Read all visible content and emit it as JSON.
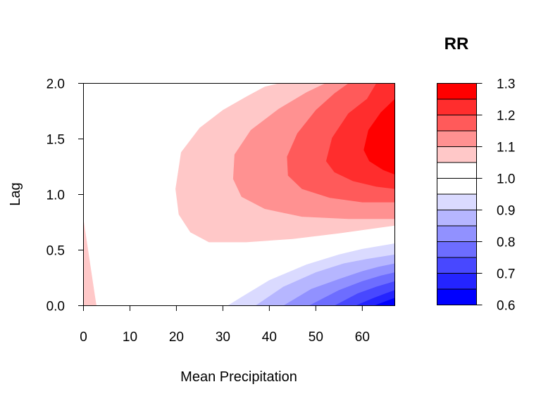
{
  "chart_data": {
    "type": "heatmap",
    "subtype": "filled-contour",
    "xlabel": "Mean Precipitation",
    "ylabel": "Lag",
    "xlim": [
      0,
      67
    ],
    "ylim": [
      0,
      2
    ],
    "xticks": [
      "0",
      "10",
      "20",
      "30",
      "40",
      "50",
      "60"
    ],
    "yticks": [
      "0.0",
      "0.5",
      "1.0",
      "1.5",
      "2.0"
    ],
    "legend": {
      "title": "RR",
      "placement": "right",
      "ticks": [
        "0.6",
        "0.7",
        "0.8",
        "0.9",
        "1.0",
        "1.1",
        "1.2",
        "1.3"
      ],
      "levels": [
        0.6,
        0.65,
        0.7,
        0.75,
        0.8,
        0.85,
        0.9,
        0.95,
        1.0,
        1.05,
        1.1,
        1.15,
        1.2,
        1.25,
        1.3
      ],
      "colors": [
        "#0000FF",
        "#2424FF",
        "#4848FF",
        "#6D6DFF",
        "#9191FF",
        "#B6B6FF",
        "#DADAFF",
        "#FFFFFF",
        "#FFFFFF",
        "#FFC8C8",
        "#FF9191",
        "#FF5A5A",
        "#FF2D2D",
        "#FF0000"
      ]
    },
    "regions": [
      {
        "rr_range": [
          1.05,
          1.1
        ],
        "color": "#FFC8C8",
        "points": [
          [
            0,
            0
          ],
          [
            0,
            0.78
          ],
          [
            1,
            0.5
          ],
          [
            2.5,
            0.08
          ],
          [
            2.8,
            0
          ]
        ]
      },
      {
        "rr_range": [
          1.05,
          1.1
        ],
        "color": "#FFC8C8",
        "points": [
          [
            42,
            2.0
          ],
          [
            39,
            1.97
          ],
          [
            35,
            1.88
          ],
          [
            30,
            1.76
          ],
          [
            25,
            1.6
          ],
          [
            21,
            1.38
          ],
          [
            19.8,
            1.05
          ],
          [
            20.5,
            0.82
          ],
          [
            23,
            0.66
          ],
          [
            27,
            0.57
          ],
          [
            35,
            0.57
          ],
          [
            45,
            0.6
          ],
          [
            55,
            0.65
          ],
          [
            67,
            0.72
          ],
          [
            67,
            2.0
          ]
        ]
      },
      {
        "rr_range": [
          1.1,
          1.15
        ],
        "color": "#FF9191",
        "points": [
          [
            52,
            2.0
          ],
          [
            48,
            1.92
          ],
          [
            42,
            1.77
          ],
          [
            36,
            1.58
          ],
          [
            32.5,
            1.36
          ],
          [
            32.2,
            1.14
          ],
          [
            34,
            0.98
          ],
          [
            39,
            0.87
          ],
          [
            47,
            0.8
          ],
          [
            57,
            0.78
          ],
          [
            67,
            0.78
          ],
          [
            67,
            2.0
          ]
        ]
      },
      {
        "rr_range": [
          1.15,
          1.2
        ],
        "color": "#FF5A5A",
        "points": [
          [
            57,
            2.0
          ],
          [
            54,
            1.91
          ],
          [
            50,
            1.76
          ],
          [
            46,
            1.55
          ],
          [
            43.8,
            1.34
          ],
          [
            44,
            1.17
          ],
          [
            47,
            1.05
          ],
          [
            53,
            0.97
          ],
          [
            60,
            0.93
          ],
          [
            67,
            0.93
          ],
          [
            67,
            2.0
          ]
        ]
      },
      {
        "rr_range": [
          1.2,
          1.25
        ],
        "color": "#FF2D2D",
        "points": [
          [
            63,
            2.0
          ],
          [
            61,
            1.86
          ],
          [
            57,
            1.73
          ],
          [
            53.5,
            1.51
          ],
          [
            52.2,
            1.3
          ],
          [
            54,
            1.2
          ],
          [
            58,
            1.12
          ],
          [
            63,
            1.07
          ],
          [
            67,
            1.05
          ],
          [
            67,
            2.0
          ]
        ]
      },
      {
        "rr_range": [
          1.25,
          1.3
        ],
        "color": "#FF0000",
        "points": [
          [
            67,
            1.86
          ],
          [
            64,
            1.74
          ],
          [
            61.3,
            1.58
          ],
          [
            60.3,
            1.4
          ],
          [
            61.5,
            1.3
          ],
          [
            64.5,
            1.22
          ],
          [
            67,
            1.18
          ]
        ]
      },
      {
        "rr_range": [
          0.9,
          0.95
        ],
        "color": "#DADAFF",
        "points": [
          [
            31,
            0
          ],
          [
            34.5,
            0.09
          ],
          [
            40,
            0.23
          ],
          [
            48,
            0.37
          ],
          [
            55,
            0.46
          ],
          [
            60,
            0.51
          ],
          [
            67,
            0.56
          ],
          [
            67,
            0
          ]
        ]
      },
      {
        "rr_range": [
          0.85,
          0.9
        ],
        "color": "#B6B6FF",
        "points": [
          [
            37,
            0
          ],
          [
            43,
            0.17
          ],
          [
            50,
            0.3
          ],
          [
            56,
            0.38
          ],
          [
            61,
            0.42
          ],
          [
            67,
            0.46
          ],
          [
            67,
            0
          ]
        ]
      },
      {
        "rr_range": [
          0.8,
          0.85
        ],
        "color": "#9191FF",
        "points": [
          [
            43,
            0
          ],
          [
            49,
            0.15
          ],
          [
            55,
            0.24
          ],
          [
            60,
            0.31
          ],
          [
            63.5,
            0.35
          ],
          [
            67,
            0.38
          ],
          [
            67,
            0
          ]
        ]
      },
      {
        "rr_range": [
          0.75,
          0.8
        ],
        "color": "#6D6DFF",
        "points": [
          [
            48.5,
            0
          ],
          [
            55,
            0.14
          ],
          [
            60,
            0.22
          ],
          [
            64,
            0.27
          ],
          [
            67,
            0.3
          ],
          [
            67,
            0
          ]
        ]
      },
      {
        "rr_range": [
          0.7,
          0.75
        ],
        "color": "#4848FF",
        "points": [
          [
            54,
            0
          ],
          [
            59,
            0.11
          ],
          [
            63,
            0.17
          ],
          [
            67,
            0.22
          ],
          [
            67,
            0
          ]
        ]
      },
      {
        "rr_range": [
          0.65,
          0.7
        ],
        "color": "#2424FF",
        "points": [
          [
            58.5,
            0
          ],
          [
            62.5,
            0.07
          ],
          [
            65,
            0.11
          ],
          [
            67,
            0.14
          ],
          [
            67,
            0
          ]
        ]
      },
      {
        "rr_range": [
          0.6,
          0.65
        ],
        "color": "#0000FF",
        "points": [
          [
            62.5,
            0
          ],
          [
            65,
            0.04
          ],
          [
            67,
            0.07
          ],
          [
            67,
            0
          ]
        ]
      }
    ]
  }
}
